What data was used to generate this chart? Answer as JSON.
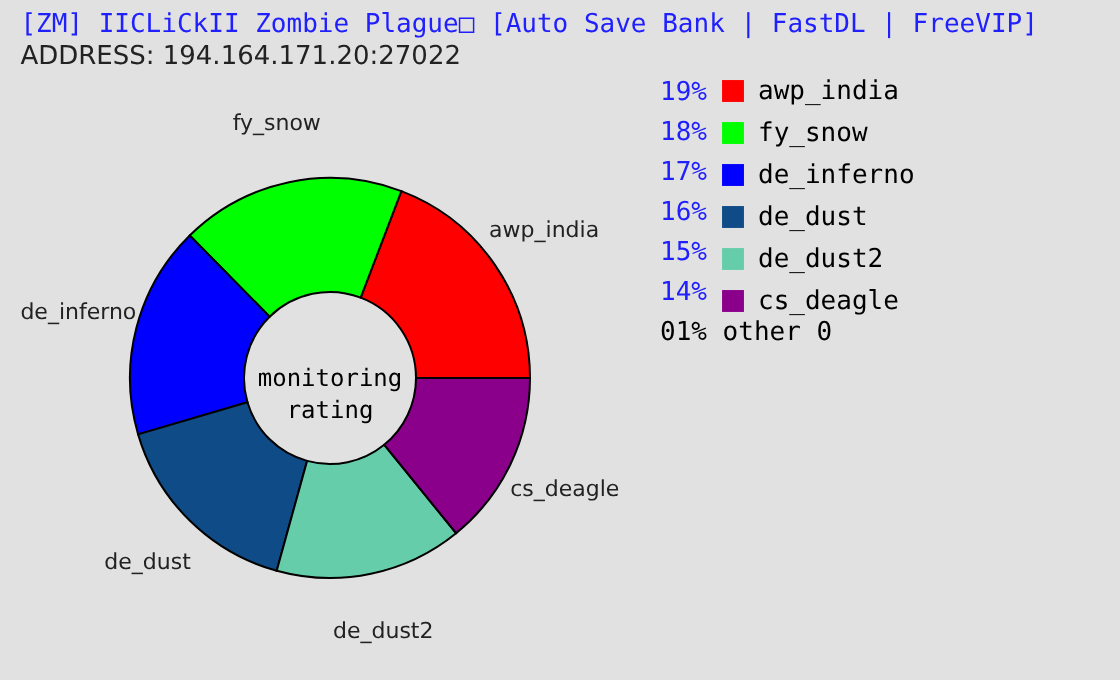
{
  "chart_data": {
    "type": "donut",
    "title": "[ZM] IICLiCkII Zombie Plague□ [Auto Save Bank | FastDL | FreeVIP]",
    "subtitle": "ADDRESS: 194.164.171.20:27022",
    "categories": [
      "awp_india",
      "fy_snow",
      "de_inferno",
      "de_dust",
      "de_dust2",
      "cs_deagle"
    ],
    "values": [
      19,
      18,
      17,
      16,
      15,
      14
    ],
    "value_labels": [
      "19%",
      "18%",
      "17%",
      "16%",
      "15%",
      "14%"
    ],
    "colors": [
      "#ff0000",
      "#00ff00",
      "#0000ff",
      "#0f4c87",
      "#66cdaa",
      "#8b008b"
    ],
    "annotations": [
      "monitoring rating",
      "01% other 0"
    ],
    "legend": "right"
  }
}
